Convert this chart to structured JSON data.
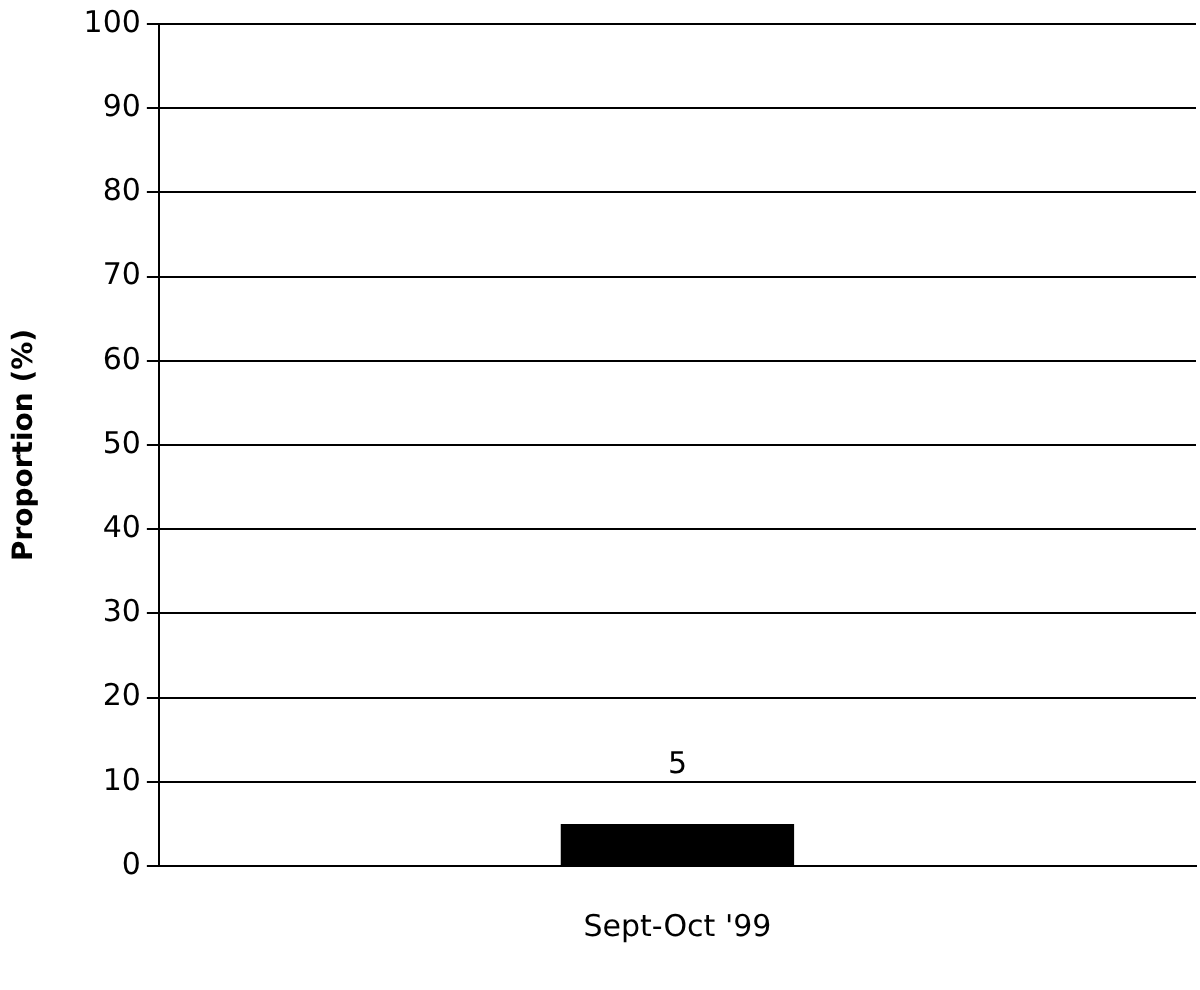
{
  "chart_data": {
    "type": "bar",
    "ylabel": "Proportion (%)",
    "categories": [
      "Sept-Oct '99"
    ],
    "series": [
      {
        "color": "#000000",
        "values": [
          5
        ]
      }
    ],
    "ylim": [
      0,
      100
    ],
    "yticks": [
      0,
      10,
      20,
      30,
      40,
      50,
      60,
      70,
      80,
      90,
      100
    ],
    "grid": "y",
    "data_labels": true
  }
}
